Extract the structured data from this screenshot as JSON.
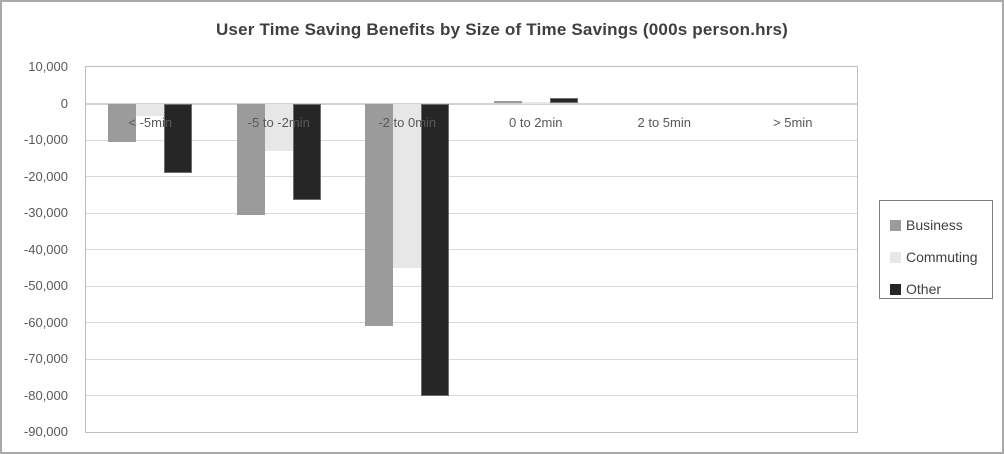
{
  "window": {
    "background": "#ffffff",
    "border_color": "#a9a9a9"
  },
  "chart_data": {
    "type": "bar",
    "title": "User Time Saving Benefits by Size of Time Savings (000s person.hrs)",
    "categories": [
      "< -5min",
      "-5 to -2min",
      "-2 to 0min",
      "0 to 2min",
      "2 to 5min",
      "> 5min"
    ],
    "series": [
      {
        "name": "Business",
        "color": "#9b9b9b",
        "values": [
          -10500,
          -30500,
          -61000,
          800,
          0,
          0
        ]
      },
      {
        "name": "Commuting",
        "color": "#e7e7e7",
        "values": [
          -3500,
          -13000,
          -45000,
          300,
          0,
          0
        ]
      },
      {
        "name": "Other",
        "color": "#262626",
        "values": [
          -19000,
          -26500,
          -80000,
          1500,
          0,
          0
        ]
      }
    ],
    "xlabel": "",
    "ylabel": "",
    "ylim": [
      -90000,
      10000
    ],
    "ytick_step": 10000,
    "ytick_labels": [
      "10,000",
      "0",
      "-10,000",
      "-20,000",
      "-30,000",
      "-40,000",
      "-50,000",
      "-60,000",
      "-70,000",
      "-80,000",
      "-90,000"
    ],
    "grid": true,
    "gridline_color": "#d9d9d9",
    "axis_text_color": "#595959",
    "title_color": "#3f3f3f",
    "legend_position": "right",
    "legend_border_color": "#7f7f7f"
  }
}
